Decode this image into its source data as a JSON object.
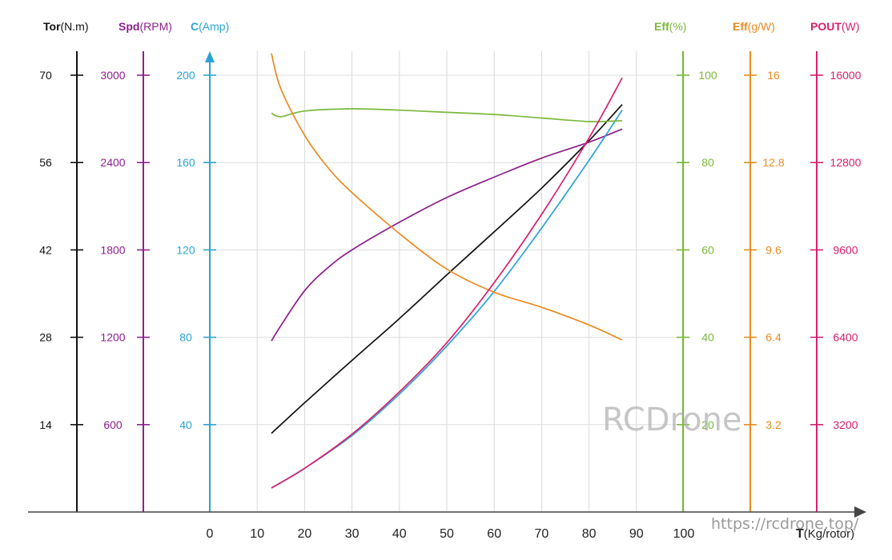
{
  "axes": [
    {
      "key": "tor",
      "name": "Tor",
      "unit": "(N.m)",
      "color": "#111111",
      "ticks": [
        "70",
        "56",
        "42",
        "28",
        "14"
      ],
      "values": [
        70,
        56,
        42,
        28,
        14
      ],
      "max": 70
    },
    {
      "key": "spd",
      "name": "Spd",
      "unit": "(RPM)",
      "color": "#8e1f8e",
      "ticks": [
        "3000",
        "2400",
        "1800",
        "1200",
        "600"
      ],
      "values": [
        3000,
        2400,
        1800,
        1200,
        600
      ],
      "max": 3000
    },
    {
      "key": "cur",
      "name": "C",
      "unit": "(Amp)",
      "color": "#2aa3d4",
      "ticks": [
        "200",
        "160",
        "120",
        "80",
        "40"
      ],
      "values": [
        200,
        160,
        120,
        80,
        40
      ],
      "max": 200
    },
    {
      "key": "effp",
      "name": "Eff",
      "unit": "(%)",
      "color": "#7ab83a",
      "ticks": [
        "100",
        "80",
        "60",
        "40",
        "20"
      ],
      "values": [
        100,
        80,
        60,
        40,
        20
      ],
      "max": 100
    },
    {
      "key": "effg",
      "name": "Eff",
      "unit": "(g/W)",
      "color": "#ea8a1f",
      "ticks": [
        "16",
        "12.8",
        "9.6",
        "6.4",
        "3.2"
      ],
      "values": [
        16,
        12.8,
        9.6,
        6.4,
        3.2
      ],
      "max": 16
    },
    {
      "key": "pout",
      "name": "POUT",
      "unit": "(W)",
      "color": "#d81f6e",
      "ticks": [
        "16000",
        "12800",
        "9600",
        "6400",
        "3200"
      ],
      "values": [
        16000,
        12800,
        9600,
        6400,
        3200
      ],
      "max": 16000
    }
  ],
  "x_axis": {
    "ticks": [
      "0",
      "10",
      "20",
      "30",
      "40",
      "50",
      "60",
      "70",
      "80",
      "90",
      "100"
    ],
    "values": [
      0,
      10,
      20,
      30,
      40,
      50,
      60,
      70,
      80,
      90,
      100
    ],
    "label": "T",
    "unit": "(Kg/rotor)"
  },
  "watermark": "RCDrone",
  "url": "https://rcdrone.top/",
  "chart_data": {
    "type": "line",
    "xlabel": "T(Kg/rotor)",
    "xlim": [
      0,
      100
    ],
    "grid": true,
    "series": [
      {
        "name": "Tor",
        "axis": "tor",
        "x": [
          13,
          20,
          30,
          40,
          50,
          60,
          70,
          80,
          87
        ],
        "y": [
          12.6,
          17.5,
          24.3,
          31.0,
          38.0,
          44.9,
          51.9,
          59.5,
          65.3
        ]
      },
      {
        "name": "Spd",
        "axis": "spd",
        "x": [
          13,
          15,
          20,
          25,
          30,
          40,
          50,
          60,
          70,
          80,
          87
        ],
        "y": [
          1175,
          1280,
          1520,
          1680,
          1800,
          1990,
          2160,
          2300,
          2430,
          2540,
          2630
        ]
      },
      {
        "name": "C",
        "axis": "cur",
        "x": [
          13,
          20,
          30,
          40,
          50,
          60,
          70,
          80,
          87
        ],
        "y": [
          11,
          20,
          35,
          54,
          76,
          101,
          130,
          161,
          184
        ]
      },
      {
        "name": "Eff(%)",
        "axis": "effp",
        "x": [
          13,
          15,
          20,
          30,
          40,
          50,
          60,
          70,
          80,
          87
        ],
        "y": [
          91.3,
          90.5,
          91.8,
          92.3,
          92.0,
          91.5,
          91.0,
          90.2,
          89.4,
          89.6
        ]
      },
      {
        "name": "Eff(g/W)",
        "axis": "effg",
        "x": [
          13,
          15,
          20,
          25,
          30,
          40,
          50,
          60,
          70,
          80,
          87
        ],
        "y": [
          16.8,
          15.5,
          13.8,
          12.6,
          11.7,
          10.2,
          8.9,
          8.05,
          7.5,
          6.85,
          6.3
        ]
      },
      {
        "name": "POUT",
        "axis": "pout",
        "x": [
          13,
          20,
          30,
          40,
          50,
          60,
          70,
          80,
          87
        ],
        "y": [
          880,
          1600,
          2850,
          4400,
          6200,
          8400,
          10900,
          13700,
          15900
        ]
      }
    ]
  }
}
